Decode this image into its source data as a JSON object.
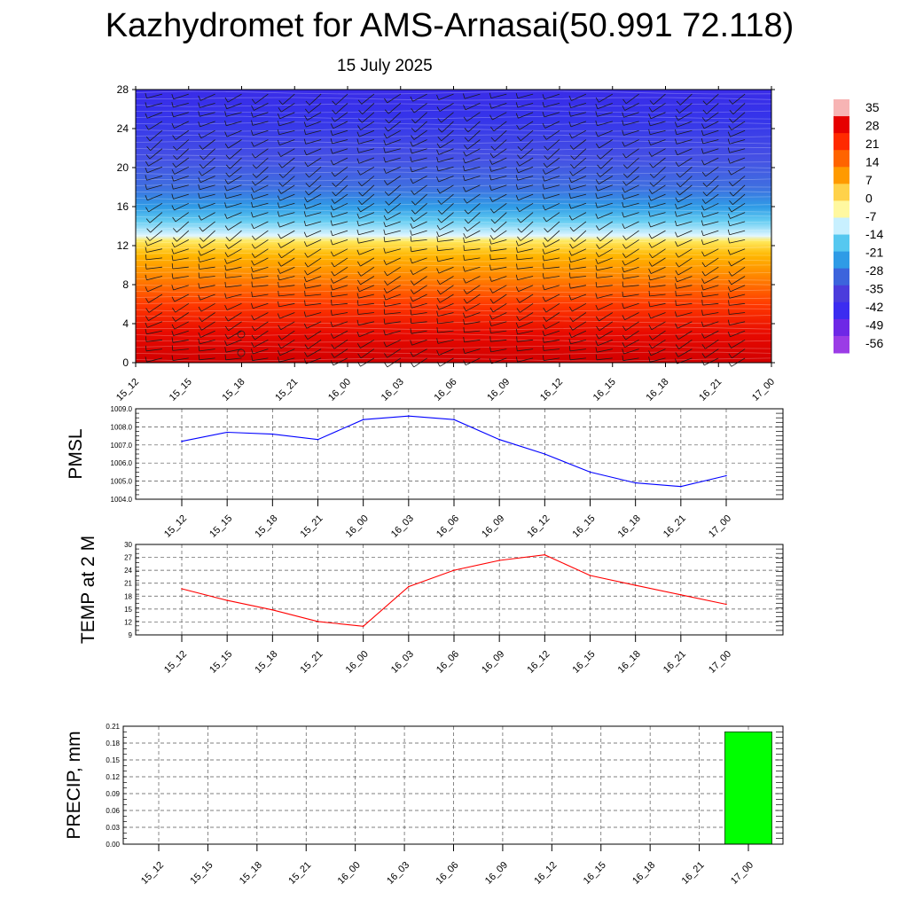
{
  "header": {
    "title": "Kazhydromet for AMS-Arnasai(50.991 72.118)",
    "subtitle": "15 July 2025"
  },
  "time_labels": [
    "15_12",
    "15_15",
    "15_18",
    "15_21",
    "16_00",
    "16_03",
    "16_06",
    "16_09",
    "16_12",
    "16_15",
    "16_18",
    "16_21",
    "17_00"
  ],
  "chart_data": [
    {
      "type": "heatmap",
      "title": "",
      "x": [
        "15_12",
        "15_15",
        "15_18",
        "15_21",
        "16_00",
        "16_03",
        "16_06",
        "16_09",
        "16_12",
        "16_15",
        "16_18",
        "16_21",
        "17_00"
      ],
      "yticks": [
        0,
        4,
        8,
        12,
        16,
        20,
        24,
        28
      ],
      "ylim": [
        0,
        28
      ],
      "colorbar": {
        "labels": [
          "35",
          "28",
          "21",
          "14",
          "7",
          "0",
          "-7",
          "-14",
          "-21",
          "-28",
          "-35",
          "-42",
          "-49",
          "-56"
        ],
        "colors": [
          "#f7b4b4",
          "#e60000",
          "#ff2a00",
          "#ff6400",
          "#ff9a00",
          "#ffd24a",
          "#fff8a0",
          "#c8f0ff",
          "#56c8f0",
          "#2f9be6",
          "#3c64dc",
          "#4b3cdc",
          "#3c2cf0",
          "#6e28e6",
          "#9b3ce6"
        ],
        "levels_top_to_bottom": [
          35,
          28,
          21,
          14,
          7,
          0,
          -7,
          -14,
          -21,
          -28,
          -35,
          -42,
          -49,
          -56
        ]
      },
      "profile": [
        {
          "level": 0,
          "color": "#d10000"
        },
        {
          "level": 3,
          "color": "#e80a00"
        },
        {
          "level": 6,
          "color": "#ff3a00"
        },
        {
          "level": 9,
          "color": "#ff8a00"
        },
        {
          "level": 11,
          "color": "#ffb600"
        },
        {
          "level": 12.5,
          "color": "#ffea60"
        },
        {
          "level": 13,
          "color": "#e0f6ff"
        },
        {
          "level": 14.5,
          "color": "#66cdf2"
        },
        {
          "level": 16,
          "color": "#2f9be6"
        },
        {
          "level": 18,
          "color": "#3f6ee0"
        },
        {
          "level": 21,
          "color": "#4550e4"
        },
        {
          "level": 25,
          "color": "#3534ea"
        },
        {
          "level": 28,
          "color": "#3a2ce8"
        }
      ],
      "wind_barbs": true
    },
    {
      "type": "line",
      "ylabel": "PMSL",
      "x": [
        "15_12",
        "15_15",
        "15_18",
        "15_21",
        "16_00",
        "16_03",
        "16_06",
        "16_09",
        "16_12",
        "16_15",
        "16_18",
        "16_21",
        "17_00"
      ],
      "values": [
        1007.2,
        1007.7,
        1007.6,
        1007.3,
        1008.4,
        1008.6,
        1008.4,
        1007.3,
        1006.5,
        1005.5,
        1004.9,
        1004.7,
        1005.3
      ],
      "yticks": [
        "1004.0",
        "1005.0",
        "1006.0",
        "1007.0",
        "1008.0",
        "1009.0"
      ],
      "ylim": [
        1004.0,
        1009.0
      ],
      "color": "#0000ff",
      "grid": true
    },
    {
      "type": "line",
      "ylabel": "TEMP at 2 M",
      "x": [
        "15_12",
        "15_15",
        "15_18",
        "15_21",
        "16_00",
        "16_03",
        "16_06",
        "16_09",
        "16_12",
        "16_15",
        "16_18",
        "16_21",
        "17_00"
      ],
      "values": [
        19.7,
        17.0,
        14.8,
        12.1,
        11.0,
        20.2,
        24.0,
        26.3,
        27.6,
        22.8,
        20.5,
        18.3,
        16.1
      ],
      "yticks": [
        "9",
        "12",
        "15",
        "18",
        "21",
        "24",
        "27",
        "30"
      ],
      "ylim": [
        9,
        30
      ],
      "color": "#ff0000",
      "grid": true
    },
    {
      "type": "bar",
      "ylabel": "PRECIP, mm",
      "categories": [
        "15_12",
        "15_15",
        "15_18",
        "15_21",
        "16_00",
        "16_03",
        "16_06",
        "16_09",
        "16_12",
        "16_15",
        "16_18",
        "16_21",
        "17_00"
      ],
      "values": [
        0,
        0,
        0,
        0,
        0,
        0,
        0,
        0,
        0,
        0,
        0,
        0,
        0.2
      ],
      "yticks": [
        "0.00",
        "0.03",
        "0.06",
        "0.09",
        "0.12",
        "0.15",
        "0.18",
        "0.21"
      ],
      "ylim": [
        0,
        0.21
      ],
      "color": "#00ff00",
      "grid": true
    }
  ]
}
